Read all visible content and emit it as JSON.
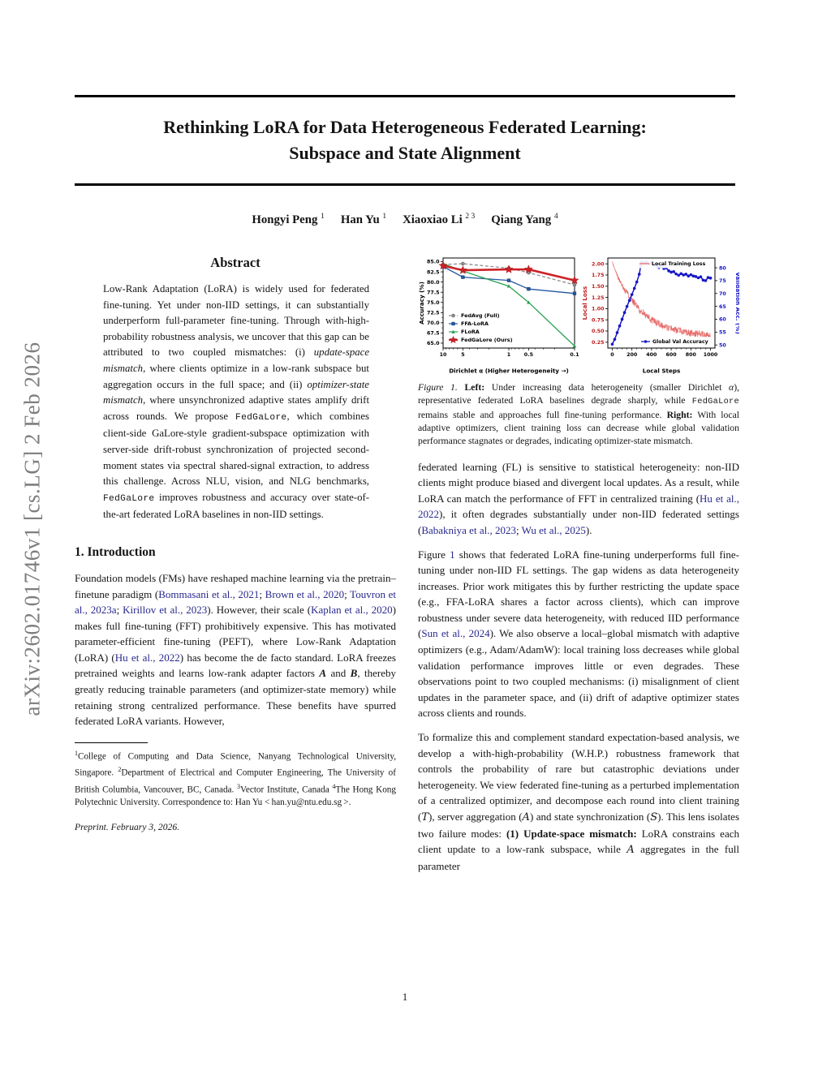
{
  "sidebar": {
    "arxiv_text": "arXiv:2602.01746v1  [cs.LG]  2 Feb 2026"
  },
  "header": {
    "title_line1": "Rethinking LoRA for Data Heterogeneous Federated Learning:",
    "title_line2": "Subspace and State Alignment",
    "authors": [
      {
        "name": "Hongyi Peng",
        "sup": "1"
      },
      {
        "name": "Han Yu",
        "sup": "1"
      },
      {
        "name": "Xiaoxiao Li",
        "sup": "2 3"
      },
      {
        "name": "Qiang Yang",
        "sup": "4"
      }
    ]
  },
  "abstract": {
    "heading": "Abstract",
    "body": [
      {
        "t": "Low-Rank Adaptation (LoRA) is widely used for federated fine-tuning. Yet under non-IID settings, it can substantially underperform full-parameter fine-tuning. Through with-high-probability robustness analysis, we uncover that this gap can be attributed to two coupled mismatches: (i) "
      },
      {
        "t": "update-space mismatch",
        "s": "i"
      },
      {
        "t": ", where clients optimize in a low-rank subspace but aggregation occurs in the full space; and (ii) "
      },
      {
        "t": "optimizer-state mismatch",
        "s": "i"
      },
      {
        "t": ", where unsynchronized adaptive states amplify drift across rounds.  We propose "
      },
      {
        "t": "FedGaLore",
        "s": "tt"
      },
      {
        "t": ", which combines client-side GaLore-style gradient-subspace optimization with server-side drift-robust synchronization of projected second-moment states via spectral shared-signal extraction, to address this challenge.  Across NLU, vision, and NLG benchmarks, "
      },
      {
        "t": "FedGaLore",
        "s": "tt"
      },
      {
        "t": " improves robustness and accuracy over state-of-the-art federated LoRA baselines in non-IID settings."
      }
    ]
  },
  "sections": {
    "intro": {
      "heading": "1. Introduction"
    }
  },
  "intro_p1": [
    {
      "t": "Foundation models (FMs) have reshaped machine learning via the pretrain–finetune paradigm ("
    },
    {
      "t": "Bommasani et al., 2021",
      "s": "link"
    },
    {
      "t": "; "
    },
    {
      "t": "Brown et al., 2020",
      "s": "link"
    },
    {
      "t": "; "
    },
    {
      "t": "Touvron et al., 2023a",
      "s": "link"
    },
    {
      "t": "; "
    },
    {
      "t": "Kirillov et al., 2023",
      "s": "link"
    },
    {
      "t": ").  However, their scale ("
    },
    {
      "t": "Kaplan et al., 2020",
      "s": "link"
    },
    {
      "t": ") makes full fine-tuning (FFT) prohibitively expensive.  This has motivated parameter-efficient fine-tuning (PEFT), where Low-Rank Adaptation (LoRA) ("
    },
    {
      "t": "Hu et al., 2022",
      "s": "link"
    },
    {
      "t": ") has become the de facto standard. LoRA freezes pretrained weights and learns low-rank adapter factors "
    },
    {
      "t": "A",
      "s": "bi"
    },
    {
      "t": " and "
    },
    {
      "t": "B",
      "s": "bi"
    },
    {
      "t": ", thereby greatly reducing trainable parameters (and optimizer-state memory) while retaining strong centralized performance. These benefits have spurred federated LoRA variants.  However,"
    }
  ],
  "footnote": {
    "body": [
      {
        "t": "1",
        "s": "sup"
      },
      {
        "t": "College of Computing and Data Science, Nanyang Technological University, Singapore. "
      },
      {
        "t": "2",
        "s": "sup"
      },
      {
        "t": "Department of Electrical and Computer Engineering, The University of British Columbia, Vancouver, BC, Canada. "
      },
      {
        "t": "3",
        "s": "sup"
      },
      {
        "t": "Vector Institute, Canada "
      },
      {
        "t": "4",
        "s": "sup"
      },
      {
        "t": "The Hong Kong Polytechnic University.  Correspondence to: Han Yu < han.yu@ntu.edu.sg >."
      }
    ],
    "preprint": "Preprint. February 3, 2026."
  },
  "figure": {
    "caption": [
      {
        "t": "Figure 1.",
        "s": "i"
      },
      {
        "t": "  "
      },
      {
        "t": "Left:",
        "s": "b"
      },
      {
        "t": " Under increasing data heterogeneity (smaller Dirichlet "
      },
      {
        "t": "α",
        "s": "i"
      },
      {
        "t": "), representative federated LoRA baselines degrade sharply, while "
      },
      {
        "t": "FedGaLore",
        "s": "tt"
      },
      {
        "t": " remains stable and approaches full fine-tuning performance. "
      },
      {
        "t": "Right:",
        "s": "b"
      },
      {
        "t": " With local adaptive optimizers, client training loss can decrease while global validation performance stagnates or degrades, indicating optimizer-state mismatch."
      }
    ]
  },
  "body_p1": [
    {
      "t": "federated learning (FL) is sensitive to statistical heterogeneity: non-IID clients might produce biased and divergent local updates. As a result, while LoRA can match the performance of FFT in centralized training ("
    },
    {
      "t": "Hu et al., 2022",
      "s": "link"
    },
    {
      "t": "), it often degrades substantially under non-IID federated settings ("
    },
    {
      "t": "Babakniya et al., 2023",
      "s": "link"
    },
    {
      "t": "; "
    },
    {
      "t": "Wu et al., 2025",
      "s": "link"
    },
    {
      "t": ")."
    }
  ],
  "body_p2": [
    {
      "t": "Figure "
    },
    {
      "t": "1",
      "s": "link"
    },
    {
      "t": " shows that federated LoRA fine-tuning underperforms full fine-tuning under non-IID FL settings. The gap widens as data heterogeneity increases. Prior work mitigates this by further restricting the update space (e.g., FFA-LoRA shares a factor across clients), which can improve robustness under severe data heterogeneity, with reduced IID performance ("
    },
    {
      "t": "Sun et al., 2024",
      "s": "link"
    },
    {
      "t": ").  We also observe a local–global mismatch with adaptive optimizers (e.g., Adam/AdamW): local training loss decreases while global validation performance improves little or even degrades. These observations point to two coupled mechanisms: (i) misalignment of client updates in the parameter space, and (ii) drift of adaptive optimizer states across clients and rounds."
    }
  ],
  "body_p3": [
    {
      "t": "To formalize this and complement standard expectation-based analysis, we develop a with-high-probability (W.H.P.) robustness framework that controls the probability of rare but catastrophic deviations under heterogeneity.  We view federated fine-tuning as a perturbed implementation of a centralized optimizer, and decompose each round into client training ("
    },
    {
      "t": "T",
      "s": "cal"
    },
    {
      "t": "), server aggregation ("
    },
    {
      "t": "A",
      "s": "cal"
    },
    {
      "t": ") and state synchronization ("
    },
    {
      "t": "S",
      "s": "cal"
    },
    {
      "t": ").  This lens isolates two failure modes: "
    },
    {
      "t": "(1) Update-space mismatch:",
      "s": "b"
    },
    {
      "t": " LoRA constrains each client update to a low-rank subspace, while "
    },
    {
      "t": "A",
      "s": "cal"
    },
    {
      "t": " aggregates in the full parameter"
    }
  ],
  "pageno": "1",
  "chart_data": [
    {
      "type": "line",
      "xlabel": "Dirichlet α (Higher Heterogeneity →)",
      "ylabel": "Accuracy (%)",
      "x_scale": "log-reversed",
      "x": [
        10,
        5,
        1,
        0.5,
        0.1
      ],
      "x_tick_labels": [
        "10",
        "5",
        "1",
        "0.5",
        "0.1"
      ],
      "ylim": [
        63.8,
        85.9
      ],
      "y_ticks": [
        65.0,
        67.5,
        70.0,
        72.5,
        75.0,
        77.5,
        80.0,
        82.5,
        85.0
      ],
      "grid": false,
      "legend_position": "lower-left",
      "series": [
        {
          "name": "FedAvg (Full)",
          "values": [
            84.3,
            84.5,
            83.4,
            82.3,
            79.3
          ],
          "color": "#8f8f8f",
          "marker": "circle",
          "dash": true
        },
        {
          "name": "FFA-LoRA",
          "values": [
            83.8,
            81.2,
            80.4,
            78.3,
            77.2
          ],
          "color": "#2457a0",
          "marker": "square",
          "dash": false
        },
        {
          "name": "FLoRA",
          "values": [
            84.5,
            82.7,
            79.0,
            75.0,
            64.3
          ],
          "color": "#2aa353",
          "marker": "triangle",
          "dash": false
        },
        {
          "name": "FedGaLore (Ours)",
          "values": [
            84.0,
            82.9,
            83.1,
            83.1,
            80.4
          ],
          "color": "#cf2127",
          "marker": "star",
          "dash": false,
          "thick": true
        }
      ]
    },
    {
      "type": "line",
      "xlabel": "Local Steps",
      "ylabel_left": "Local Loss",
      "ylabel_right": "Validation Acc. (%)",
      "xlim": [
        -45,
        1045
      ],
      "x_ticks": [
        0,
        200,
        400,
        600,
        800,
        1000
      ],
      "ylim_left": [
        0.12,
        2.13
      ],
      "y_ticks_left": [
        0.25,
        0.5,
        0.75,
        1.0,
        1.25,
        1.5,
        1.75,
        2.0
      ],
      "ylim_right": [
        48.8,
        83.8
      ],
      "y_ticks_right": [
        50,
        55,
        60,
        65,
        70,
        75,
        80
      ],
      "axis_color_left": "#c01d1d",
      "axis_color_right": "#1717c9",
      "series": [
        {
          "name": "Local Training Loss",
          "axis": "left",
          "color": "#e4605e",
          "noise_band": 0.08,
          "x": [
            0,
            10,
            25,
            50,
            75,
            100,
            125,
            150,
            175,
            200,
            250,
            300,
            350,
            400,
            450,
            500,
            550,
            600,
            650,
            700,
            750,
            800,
            850,
            900,
            950,
            1000
          ],
          "values": [
            2.05,
            1.98,
            1.88,
            1.74,
            1.62,
            1.52,
            1.43,
            1.34,
            1.26,
            1.18,
            1.05,
            0.93,
            0.84,
            0.74,
            0.69,
            0.63,
            0.59,
            0.55,
            0.52,
            0.5,
            0.47,
            0.45,
            0.44,
            0.43,
            0.41,
            0.4
          ]
        },
        {
          "name": "Global Val Accuracy",
          "axis": "right",
          "color": "#1717c9",
          "marker": "circle",
          "x": [
            0,
            25,
            50,
            75,
            100,
            125,
            150,
            175,
            200,
            225,
            250,
            275,
            290,
            300,
            325,
            350,
            375,
            400,
            425,
            450,
            460,
            475,
            500,
            525,
            550,
            575,
            600,
            625,
            650,
            675,
            700,
            725,
            750,
            775,
            800,
            825,
            850,
            875,
            900,
            925,
            950,
            975,
            1000
          ],
          "values": [
            50.3,
            52.2,
            54.8,
            57.4,
            60.0,
            62.6,
            65.0,
            67.3,
            69.6,
            72.0,
            74.5,
            77.5,
            80.9,
            82.3,
            81.9,
            82.2,
            81.5,
            82.0,
            81.2,
            80.6,
            81.3,
            80.1,
            80.6,
            79.7,
            79.9,
            78.8,
            78.3,
            78.5,
            77.6,
            77.1,
            77.7,
            77.2,
            77.5,
            76.8,
            77.3,
            76.8,
            76.6,
            76.1,
            76.5,
            75.2,
            75.0,
            76.2,
            76.0
          ]
        }
      ]
    }
  ]
}
